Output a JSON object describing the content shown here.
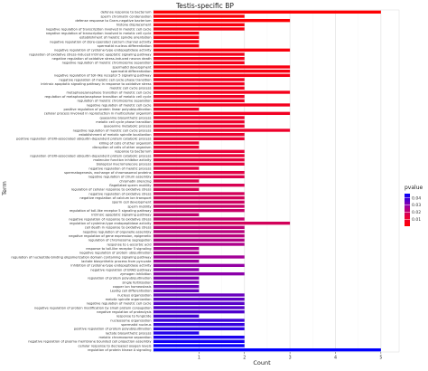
{
  "chart_data": {
    "type": "bar",
    "orientation": "horizontal",
    "title": "Testis-specific BP",
    "xlabel": "Count",
    "ylabel": "Term",
    "xlim": [
      0,
      5.4
    ],
    "x_ticks": [
      1,
      2,
      3,
      4,
      5
    ],
    "grid": true,
    "legend": {
      "title": "pvalue",
      "position": "right",
      "ticks": [
        "0.04",
        "0.03",
        "0.02",
        "0.01"
      ],
      "tick_values": [
        0.04,
        0.03,
        0.02,
        0.01
      ],
      "range": [
        0.0001,
        0.046
      ],
      "color_low_pvalue": "#ff0000",
      "color_high_pvalue": "#0000ff"
    },
    "categories": [
      "defense response to bacterium",
      "sperm chromatin condensation",
      "defense response to Gram-negative bacterium",
      "histone displacement",
      "negative regulation of transcription involved in meiotic cell cycle",
      "negative regulation of transcription involved in meiotic cell cycle",
      "establishment of meiotic spindle orientation",
      "negative regulation of store-operated calcium channel activity",
      "spermatid nucleus differentiation",
      "negative regulation of cysteine-type endopeptidase activity",
      "regulation of oxidative stress-induced intrinsic apoptotic signaling pathway",
      "negative regulation of oxidative stress-induced neuron death",
      "negative regulation of meiotic chromosome separation",
      "spermatid development",
      "spermatid differentiation",
      "negative regulation of toll-like receptor 5 signaling pathway",
      "negative regulation of meiotic cell cycle phase transition",
      "intrinsic apoptotic signaling pathway in response to oxidative stress",
      "meiotic cell cycle process",
      "metaphase/anaphase transition of meiotic cell cycle",
      "regulation of metaphase/anaphase transition of meiotic cell cycle",
      "regulation of meiotic chromosome separation",
      "negative regulation of meiotic cell cycle",
      "positive regulation of protein linear polyubiquitination",
      "cellular process involved in reproduction in multicellular organism",
      "quaoanine biosynthetic process",
      "meiotic cell cycle phase transition",
      "quaoanine metabolic process",
      "negative regulation of meiotic cell cycle process",
      "establishment of meiotic spindle localization",
      "positive regulation of ERI-associated ubiquitin-dependent protein catabolic process",
      "killing of cells of other organism",
      "disruption of cells of other organism",
      "response to bacterium",
      "regulation of ERI-associated ubiquitin-dependent protein catabolic process",
      "molecular function inhibitor activity",
      "biological macromolecule process",
      "negative regulation of meiotic process",
      "spermatogenesis, exchange of chromosomal proteins",
      "negative regulation of cilium assembly",
      "chromatin silencing",
      "flagellated sperm motility",
      "regulation of cellular response to oxidative stress",
      "negative regulation of oxidative stress",
      "negative regulation of calcium ion transport",
      "sperm cell development",
      "sperm motility",
      "regulation of toll-like receptor 5 signaling pathway",
      "intrinsic apoptotic signaling pathway",
      "negative regulation of response to oxidative stress",
      "regulation of cysteine-type endopeptidase activity",
      "cell death in response to oxidative stress",
      "negative regulation of organelle assembly",
      "negative regulation of gene expression, epigenetic",
      "regulation of chromosome segregation",
      "response to L-ascorbic acid",
      "response to toll-like receptor 5 signaling",
      "negative regulation of protein ubiquitination",
      "regulation of nucleotide-binding oligomerization domain containing signaling pathway",
      "lactate biosynthetic process from pyruvate",
      "inhibition of cysteine-type endopeptidase activity",
      "negative regulation of ERAD pathway",
      "zymogen inhibition",
      "regulation of protein polyubiquitination",
      "single fertilization",
      "copper ion homeostasis",
      "Leydig cell differentiation",
      "nucleus organization",
      "meiotic spindle organization",
      "negative regulation of meiotic cell cycle",
      "negative regulation of protein modification by small protein conjugation",
      "negative regulation of proteolysis",
      "response to fungicide",
      "nucleosome organization",
      "spermatid nucleus",
      "positive regulation of protein polyubiquitination",
      "lactate biosynthetic process",
      "meiotic chromosome separation",
      "negative regulation of plasma membrane bounded cell projection assembly",
      "cellular response to decreased oxygen levels",
      "regulation of protein kinase A signaling"
    ],
    "values": [
      5,
      2,
      3,
      2,
      2,
      1,
      1,
      1,
      1,
      3,
      2,
      2,
      2,
      3,
      3,
      3,
      2,
      2,
      2,
      3,
      2,
      2,
      3,
      1,
      3,
      2,
      2,
      2,
      3,
      2,
      2,
      1,
      1,
      2,
      2,
      2,
      2,
      1,
      2,
      2,
      1,
      2,
      1,
      2,
      2,
      2,
      2,
      2,
      1,
      2,
      3,
      2,
      2,
      2,
      2,
      2,
      1,
      1,
      2,
      1,
      2,
      1,
      2,
      1,
      1,
      1,
      1,
      2,
      2,
      2,
      2,
      2,
      1,
      2,
      2,
      2,
      1,
      2,
      2,
      2,
      5
    ],
    "pvalues": [
      0.0005,
      0.002,
      0.001,
      0.003,
      0.004,
      0.004,
      0.004,
      0.005,
      0.005,
      0.003,
      0.006,
      0.006,
      0.006,
      0.004,
      0.004,
      0.005,
      0.007,
      0.007,
      0.007,
      0.006,
      0.008,
      0.008,
      0.007,
      0.009,
      0.008,
      0.01,
      0.01,
      0.011,
      0.01,
      0.011,
      0.012,
      0.012,
      0.012,
      0.013,
      0.013,
      0.014,
      0.014,
      0.015,
      0.015,
      0.016,
      0.016,
      0.017,
      0.017,
      0.018,
      0.018,
      0.019,
      0.02,
      0.02,
      0.021,
      0.021,
      0.018,
      0.022,
      0.023,
      0.023,
      0.024,
      0.025,
      0.026,
      0.026,
      0.027,
      0.028,
      0.029,
      0.03,
      0.03,
      0.031,
      0.032,
      0.033,
      0.034,
      0.034,
      0.035,
      0.036,
      0.036,
      0.037,
      0.038,
      0.039,
      0.04,
      0.041,
      0.042,
      0.043,
      0.044,
      0.045,
      0.046
    ]
  }
}
